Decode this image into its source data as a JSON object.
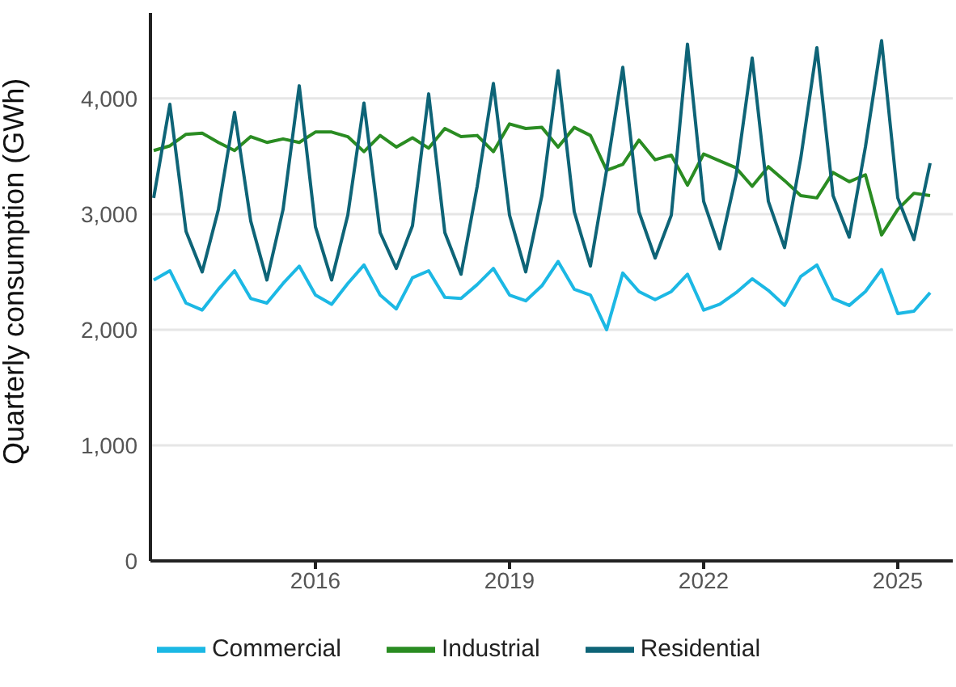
{
  "chart_data": {
    "type": "line",
    "ylabel": "Quarterly consumption (GWh)",
    "x": [
      2013.5,
      2013.75,
      2014,
      2014.25,
      2014.5,
      2014.75,
      2015,
      2015.25,
      2015.5,
      2015.75,
      2016,
      2016.25,
      2016.5,
      2016.75,
      2017,
      2017.25,
      2017.5,
      2017.75,
      2018,
      2018.25,
      2018.5,
      2018.75,
      2019,
      2019.25,
      2019.5,
      2019.75,
      2020,
      2020.25,
      2020.5,
      2020.75,
      2021,
      2021.25,
      2021.5,
      2021.75,
      2022,
      2022.25,
      2022.5,
      2022.75,
      2023,
      2023.25,
      2023.5,
      2023.75,
      2024,
      2024.25,
      2024.5,
      2024.75,
      2025,
      2025.25,
      2025.5
    ],
    "series": [
      {
        "name": "Commercial",
        "color": "#1cb8e4",
        "values": [
          2430,
          2510,
          2230,
          2170,
          2350,
          2510,
          2270,
          2230,
          2400,
          2550,
          2300,
          2220,
          2400,
          2560,
          2300,
          2180,
          2450,
          2510,
          2280,
          2270,
          2390,
          2530,
          2300,
          2250,
          2380,
          2590,
          2350,
          2300,
          2000,
          2490,
          2330,
          2260,
          2330,
          2480,
          2170,
          2220,
          2320,
          2440,
          2340,
          2210,
          2460,
          2560,
          2270,
          2210,
          2330,
          2520,
          2140,
          2160,
          2320
        ]
      },
      {
        "name": "Industrial",
        "color": "#2a8c22",
        "values": [
          3550,
          3590,
          3690,
          3700,
          3620,
          3550,
          3670,
          3620,
          3650,
          3620,
          3710,
          3710,
          3670,
          3540,
          3680,
          3580,
          3660,
          3570,
          3740,
          3670,
          3680,
          3540,
          3780,
          3740,
          3750,
          3580,
          3750,
          3680,
          3380,
          3430,
          3640,
          3470,
          3510,
          3250,
          3520,
          3460,
          3400,
          3240,
          3410,
          3290,
          3160,
          3140,
          3360,
          3280,
          3340,
          2820,
          3040,
          3180,
          3160
        ]
      },
      {
        "name": "Residential",
        "color": "#0e6477",
        "values": [
          3140,
          3950,
          2850,
          2500,
          3040,
          3880,
          2940,
          2430,
          3040,
          4110,
          2890,
          2430,
          2990,
          3960,
          2840,
          2530,
          2900,
          4040,
          2840,
          2480,
          3240,
          4130,
          2990,
          2500,
          3160,
          4240,
          3020,
          2550,
          3380,
          4270,
          3020,
          2620,
          2990,
          4470,
          3110,
          2700,
          3330,
          4350,
          3110,
          2710,
          3480,
          4440,
          3160,
          2800,
          3580,
          4500,
          3140,
          2780,
          3440
        ]
      }
    ],
    "xlim": [
      2013.45,
      2025.85
    ],
    "xticks": [
      2016,
      2019,
      2022,
      2025
    ],
    "ylim": [
      0,
      4740
    ],
    "yticks": [
      {
        "value": 0,
        "label": "0"
      },
      {
        "value": 1000,
        "label": "1,000"
      },
      {
        "value": 2000,
        "label": "2,000"
      },
      {
        "value": 3000,
        "label": "3,000"
      },
      {
        "value": 4000,
        "label": "4,000"
      }
    ],
    "grid": "y",
    "legend": "bottom",
    "marker": "none",
    "line_style": "solid"
  }
}
